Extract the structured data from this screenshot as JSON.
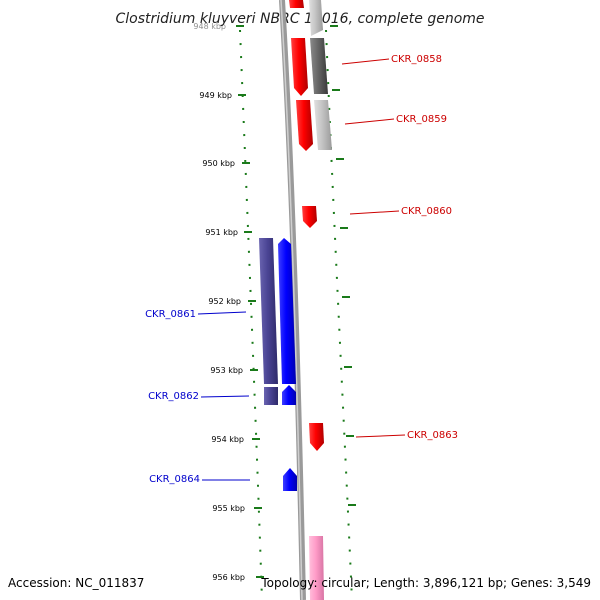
{
  "title": "Clostridium kluyveri NBRC 12016, complete genome",
  "accession": "Accession: NC_011837",
  "summary": "Topology: circular; Length: 3,896,121 bp; Genes: 3,549",
  "colors": {
    "forward_gene": "#ff0000",
    "reverse_gene": "#0000ff",
    "forward_label": "#cc0000",
    "reverse_label": "#0000cc",
    "tick": "#1a7a1a",
    "backbone": "#888888"
  },
  "ticks": [
    "948 kbp",
    "949 kbp",
    "950 kbp",
    "951 kbp",
    "952 kbp",
    "953 kbp",
    "954 kbp",
    "955 kbp",
    "956 kbp"
  ],
  "genes": [
    {
      "label": "CKR_0858",
      "strand": "forward"
    },
    {
      "label": "CKR_0859",
      "strand": "forward"
    },
    {
      "label": "CKR_0860",
      "strand": "forward"
    },
    {
      "label": "CKR_0861",
      "strand": "reverse"
    },
    {
      "label": "CKR_0862",
      "strand": "reverse"
    },
    {
      "label": "CKR_0863",
      "strand": "forward"
    },
    {
      "label": "CKR_0864",
      "strand": "reverse"
    }
  ]
}
